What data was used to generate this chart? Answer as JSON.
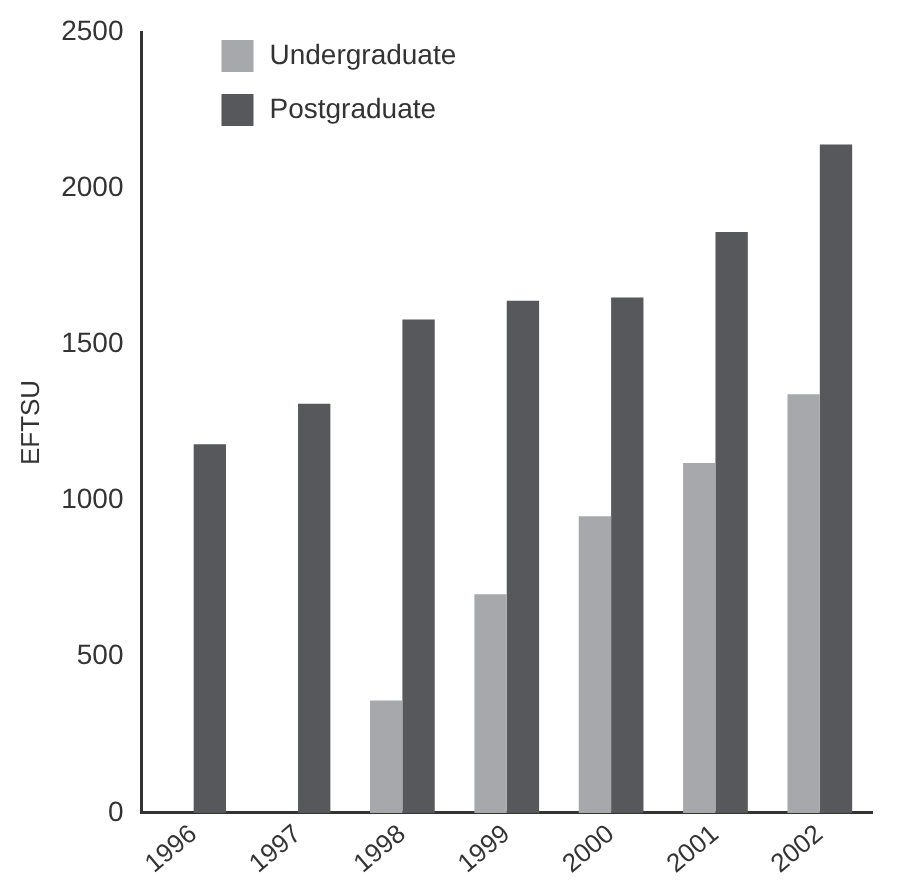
{
  "chart_data": {
    "type": "bar",
    "ylabel": "EFTSU",
    "categories": [
      "1996",
      "1997",
      "1998",
      "1999",
      "2000",
      "2001",
      "2002"
    ],
    "series": [
      {
        "name": "Undergraduate",
        "color": "#a7a8ab",
        "values": [
          null,
          null,
          360,
          700,
          950,
          1120,
          1340
        ]
      },
      {
        "name": "Postgraduate",
        "color": "#57585c",
        "values": [
          1180,
          1310,
          1580,
          1640,
          1650,
          1860,
          2140
        ]
      }
    ],
    "ylim": [
      0,
      2500
    ],
    "yticks": [
      0,
      500,
      1000,
      1500,
      2000,
      2500
    ],
    "grid": false,
    "legend": "top left"
  }
}
